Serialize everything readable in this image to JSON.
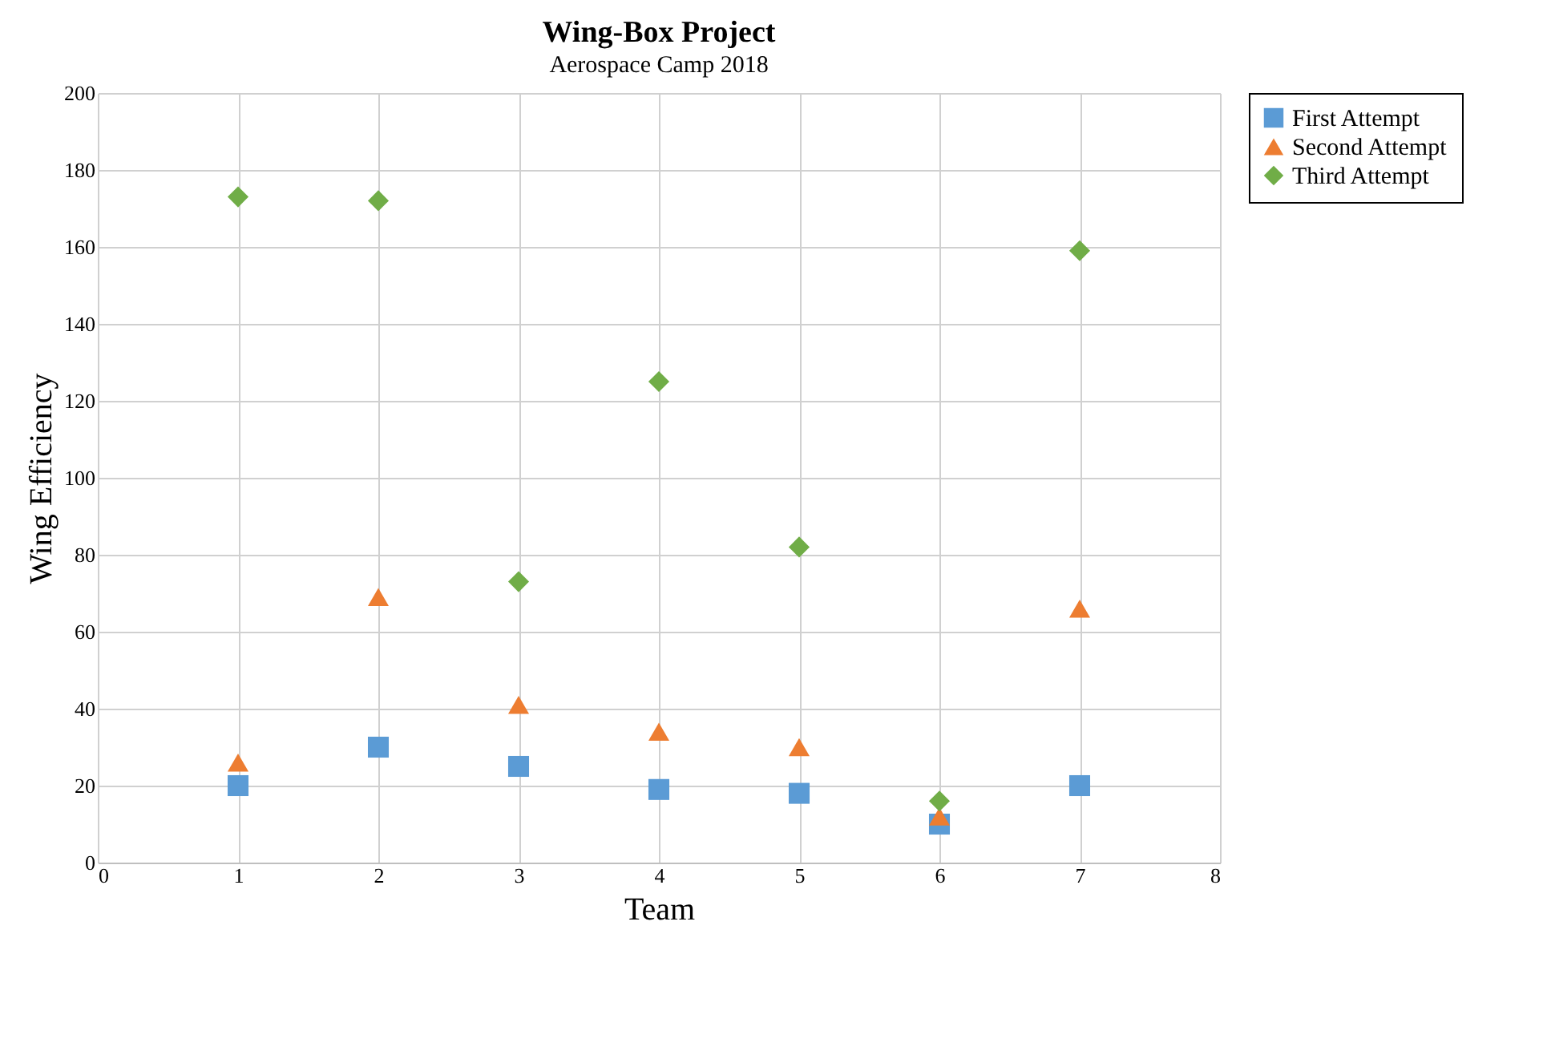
{
  "chart_data": {
    "type": "scatter",
    "title": "Wing-Box Project",
    "subtitle": "Aerospace Camp 2018",
    "xlabel": "Team",
    "ylabel": "Wing Efficiency",
    "x": [
      1,
      2,
      3,
      4,
      5,
      6,
      7
    ],
    "series": [
      {
        "name": "First Attempt",
        "color": "#5b9bd5",
        "marker": "square",
        "values": [
          20,
          30,
          25,
          19,
          18,
          10,
          20
        ]
      },
      {
        "name": "Second Attempt",
        "color": "#ed7d31",
        "marker": "triangle",
        "values": [
          26,
          69,
          41,
          34,
          30,
          12,
          66
        ]
      },
      {
        "name": "Third Attempt",
        "color": "#70ad47",
        "marker": "diamond",
        "values": [
          173,
          172,
          73,
          125,
          82,
          16,
          159
        ]
      }
    ],
    "xlim": [
      0,
      8
    ],
    "xticks": [
      0,
      1,
      2,
      3,
      4,
      5,
      6,
      7,
      8
    ],
    "ylim": [
      0,
      200
    ],
    "yticks": [
      0,
      20,
      40,
      60,
      80,
      100,
      120,
      140,
      160,
      180,
      200
    ],
    "grid": true,
    "legend": "right"
  }
}
